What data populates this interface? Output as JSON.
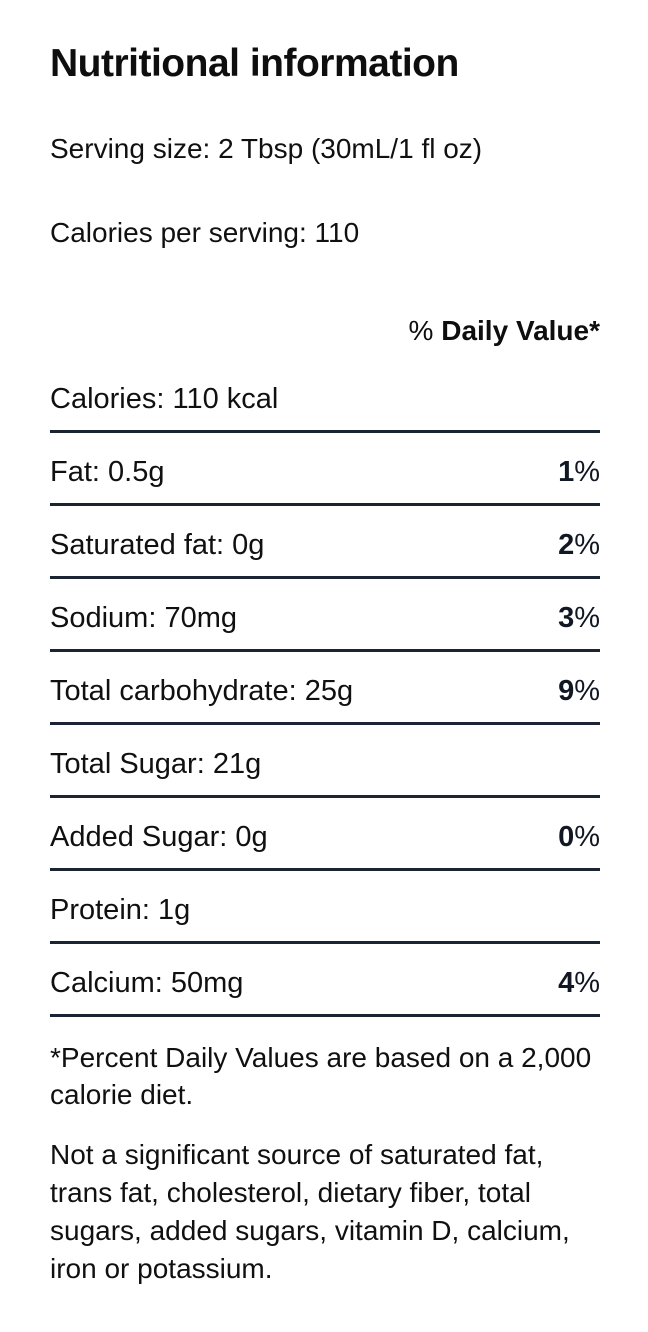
{
  "title": "Nutritional information",
  "serving_size": "Serving size: 2 Tbsp (30mL/1 fl oz)",
  "calories_per_serving": "Calories per serving: 110",
  "table": {
    "header": {
      "percent_sign": "% ",
      "label": "Daily Value*"
    },
    "rows": [
      {
        "label": "Calories: 110 kcal",
        "dv_num": null,
        "dv_unit": null
      },
      {
        "label": "Fat: 0.5g",
        "dv_num": "1",
        "dv_unit": "%"
      },
      {
        "label": "Saturated fat: 0g",
        "dv_num": "2",
        "dv_unit": "%"
      },
      {
        "label": "Sodium: 70mg",
        "dv_num": "3",
        "dv_unit": "%"
      },
      {
        "label": "Total carbohydrate: 25g",
        "dv_num": "9",
        "dv_unit": "%"
      },
      {
        "label": "Total Sugar: 21g",
        "dv_num": null,
        "dv_unit": null
      },
      {
        "label": "Added Sugar: 0g",
        "dv_num": "0",
        "dv_unit": "%"
      },
      {
        "label": "Protein: 1g",
        "dv_num": null,
        "dv_unit": null
      },
      {
        "label": "Calcium: 50mg",
        "dv_num": "4",
        "dv_unit": "%"
      }
    ]
  },
  "footnote": "*Percent Daily Values are based on a 2,000 calorie diet.",
  "disclaimer": "Not a significant source of saturated fat, trans fat, cholesterol, dietary fiber, total sugars, added sugars, vitamin D, calcium, iron or potassium.",
  "colors": {
    "text": "#101010",
    "divider": "#1a2433",
    "background": "#ffffff"
  }
}
